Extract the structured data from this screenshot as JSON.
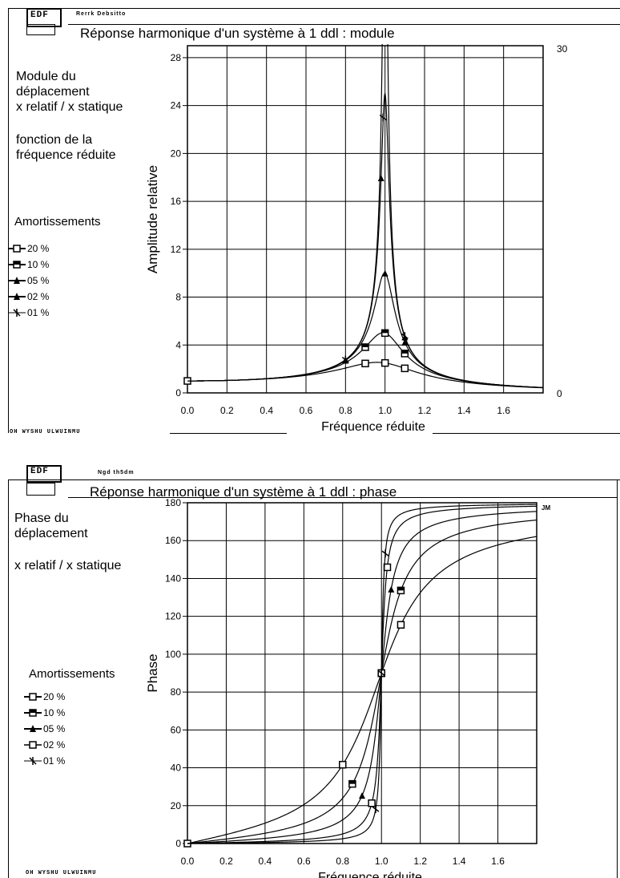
{
  "module": {
    "logo": "EDF",
    "header": "Rerrk Debsitto",
    "title": "Réponse harmonique d'un système à 1 ddl : module",
    "description": [
      "Module du",
      "déplacement",
      "x relatif / x statique",
      "",
      "fonction de la",
      "fréquence réduite"
    ],
    "legend_title": "Amortissements",
    "legend": [
      "20 %",
      "10 %",
      "05 %",
      "02 %",
      "01 %"
    ],
    "right_top": "30",
    "right_bottom": "0",
    "footer": "OH WYSHU ULWUINMU"
  },
  "phase": {
    "logo": "EDF",
    "header": "Ngd th5dm",
    "title": "Réponse harmonique d'un système à 1 ddl : phase",
    "description": [
      "Phase du",
      "déplacement",
      "",
      "x relatif / x statique"
    ],
    "legend_title": "Amortissements",
    "legend": [
      "20 %",
      "10 %",
      "05 %",
      "02 %",
      "01 %"
    ],
    "right_top": "JM",
    "footer": "OH WYSHU ULWUINMU"
  },
  "chart_data": [
    {
      "type": "line",
      "title": "Réponse harmonique d'un système à 1 ddl : module",
      "xlabel": "Fréquence réduite",
      "ylabel": "Amplitude relative",
      "xlim": [
        0,
        1.8
      ],
      "ylim": [
        0,
        29
      ],
      "xticks": [
        "0.0",
        "0.2",
        "0.4",
        "0.6",
        "0.8",
        "1.0",
        "1.2",
        "1.4",
        "1.6"
      ],
      "xtick_values": [
        0,
        0.2,
        0.4,
        0.6,
        0.8,
        1.0,
        1.2,
        1.4,
        1.6
      ],
      "yticks": [
        "0",
        "4",
        "8",
        "12",
        "16",
        "20",
        "24",
        "28"
      ],
      "ytick_values": [
        0,
        4,
        8,
        12,
        16,
        20,
        24,
        28
      ],
      "grid": true,
      "legend_position": "left",
      "series": [
        {
          "name": "20 %",
          "damping": 0.2,
          "marker": "square-open",
          "marked_x": [
            0.0,
            0.9,
            1.0,
            1.1
          ]
        },
        {
          "name": "10 %",
          "damping": 0.1,
          "marker": "square-half",
          "marked_x": [
            0.9,
            1.0,
            1.1
          ]
        },
        {
          "name": "05 %",
          "damping": 0.05,
          "marker": "triangle-filled",
          "marked_x": [
            0.8,
            1.0,
            1.1
          ]
        },
        {
          "name": "02 %",
          "damping": 0.02,
          "marker": "triangle-filled",
          "marked_x": [
            0.8,
            0.98,
            1.1
          ]
        },
        {
          "name": "01 %",
          "damping": 0.01,
          "marker": "star",
          "marked_x": [
            0.8,
            0.99,
            1.1
          ]
        }
      ]
    },
    {
      "type": "line",
      "title": "Réponse harmonique d'un système à 1 ddl : phase",
      "xlabel": "Fréquence réduite",
      "ylabel": "Phase",
      "xlim": [
        0,
        1.8
      ],
      "ylim": [
        0,
        180
      ],
      "xticks": [
        "0.0",
        "0.2",
        "0.4",
        "0.6",
        "0.8",
        "1.0",
        "1.2",
        "1.4",
        "1.6"
      ],
      "xtick_values": [
        0,
        0.2,
        0.4,
        0.6,
        0.8,
        1.0,
        1.2,
        1.4,
        1.6
      ],
      "yticks": [
        "0",
        "20",
        "40",
        "60",
        "80",
        "100",
        "120",
        "140",
        "160",
        "180"
      ],
      "ytick_values": [
        0,
        20,
        40,
        60,
        80,
        100,
        120,
        140,
        160,
        180
      ],
      "grid": true,
      "legend_position": "left",
      "series": [
        {
          "name": "20 %",
          "damping": 0.2,
          "marker": "square-open",
          "marked_x": [
            0.0,
            0.8,
            1.0,
            1.1
          ]
        },
        {
          "name": "10 %",
          "damping": 0.1,
          "marker": "square-half",
          "marked_x": [
            0.85,
            1.0,
            1.1
          ]
        },
        {
          "name": "05 %",
          "damping": 0.05,
          "marker": "triangle-filled",
          "marked_x": [
            0.9,
            1.0,
            1.05
          ]
        },
        {
          "name": "02 %",
          "damping": 0.02,
          "marker": "square-open",
          "marked_x": [
            0.95,
            1.0,
            1.03
          ]
        },
        {
          "name": "01 %",
          "damping": 0.01,
          "marker": "star",
          "marked_x": [
            0.97,
            1.0,
            1.02
          ]
        }
      ]
    }
  ]
}
